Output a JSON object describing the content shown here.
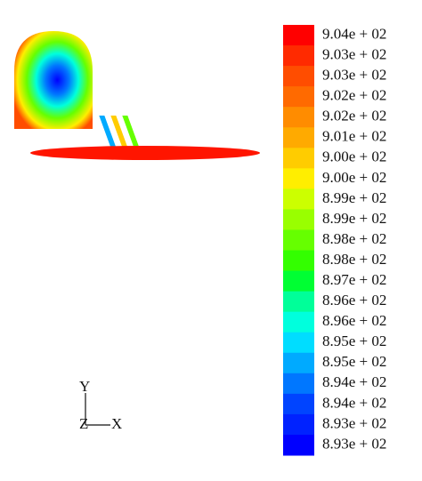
{
  "legend": {
    "labels": [
      "9.04e + 02",
      "9.03e + 02",
      "9.03e + 02",
      "9.02e + 02",
      "9.02e + 02",
      "9.01e + 02",
      "9.00e + 02",
      "9.00e + 02",
      "8.99e + 02",
      "8.99e + 02",
      "8.98e + 02",
      "8.98e + 02",
      "8.97e + 02",
      "8.96e + 02",
      "8.96e + 02",
      "8.95e + 02",
      "8.95e + 02",
      "8.94e + 02",
      "8.94e + 02",
      "8.93e + 02",
      "8.93e + 02"
    ],
    "colors": [
      "#ff0000",
      "#ff2a00",
      "#ff4d00",
      "#ff6a00",
      "#ff8c00",
      "#ffaa00",
      "#ffcc00",
      "#ffee00",
      "#ccff00",
      "#99ff00",
      "#66ff00",
      "#33ff00",
      "#00ff33",
      "#00ff99",
      "#00ffdd",
      "#00ddff",
      "#00aaff",
      "#0077ff",
      "#0044ff",
      "#0022ff",
      "#0000ff"
    ]
  },
  "axes": {
    "y": "Y",
    "z": "Z",
    "x": "X"
  }
}
